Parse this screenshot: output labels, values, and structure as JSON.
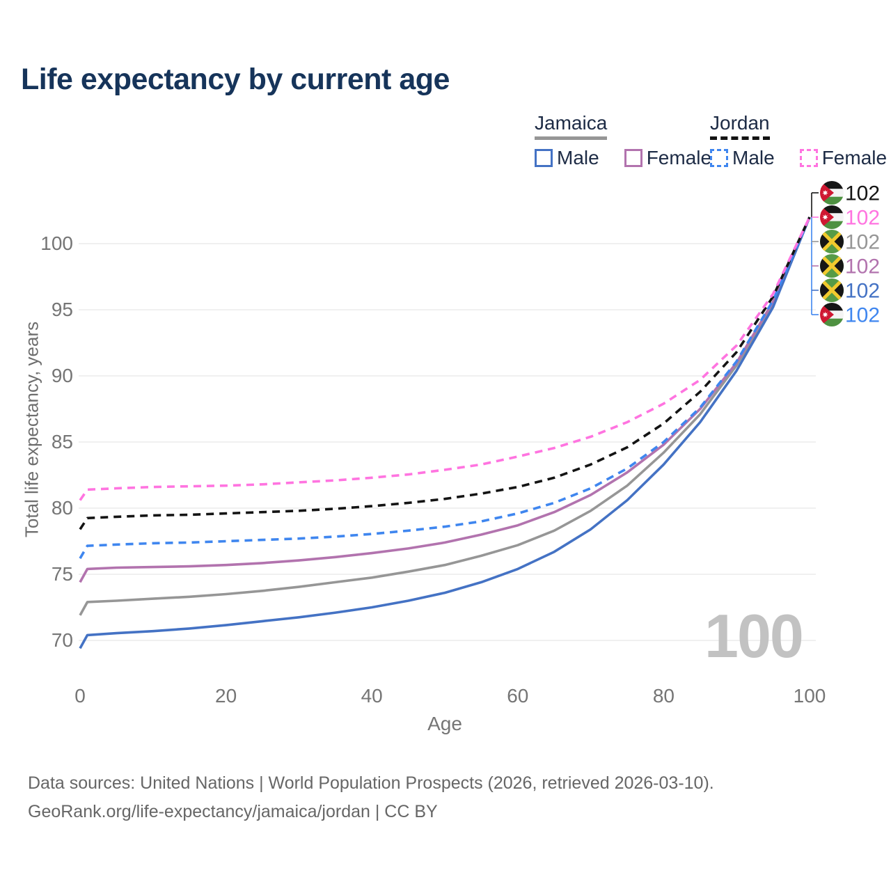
{
  "title": "Life expectancy by current age",
  "watermark": "100",
  "legend": {
    "groups": [
      {
        "country": "Jamaica",
        "line_style": "solid",
        "underline_color": "#969696",
        "items": [
          {
            "label": "Male",
            "color": "#4472c4",
            "dashed": false
          },
          {
            "label": "Female",
            "color": "#b273ae",
            "dashed": false
          }
        ]
      },
      {
        "country": "Jordan",
        "line_style": "dashed",
        "underline_color": "#141414",
        "items": [
          {
            "label": "Male",
            "color": "#3f86ef",
            "dashed": true
          },
          {
            "label": "Female",
            "color": "#ff74e0",
            "dashed": true
          }
        ]
      }
    ]
  },
  "axes": {
    "x_label": "Age",
    "y_label": "Total life expectancy, years",
    "x_ticks": [
      0,
      20,
      40,
      60,
      80,
      100
    ],
    "y_ticks": [
      70,
      75,
      80,
      85,
      90,
      95,
      100
    ]
  },
  "end_labels": [
    {
      "series": "jordan-all",
      "flag": "jordan",
      "value": "102",
      "color": "#141414"
    },
    {
      "series": "jordan-female",
      "flag": "jordan",
      "value": "102",
      "color": "#ff74e0"
    },
    {
      "series": "jamaica-all",
      "flag": "jamaica",
      "value": "102",
      "color": "#969696"
    },
    {
      "series": "jamaica-female",
      "flag": "jamaica",
      "value": "102",
      "color": "#b273ae"
    },
    {
      "series": "jamaica-male",
      "flag": "jamaica",
      "value": "102",
      "color": "#4472c4"
    },
    {
      "series": "jordan-male",
      "flag": "jordan",
      "value": "102",
      "color": "#3f86ef"
    }
  ],
  "footer": {
    "line1": "Data sources: United Nations | World Population Prospects (2026, retrieved 2026-03-10).",
    "line2": "GeoRank.org/life-expectancy/jamaica/jordan | CC BY"
  },
  "chart_data": {
    "type": "line",
    "title": "Life expectancy by current age",
    "xlabel": "Age",
    "ylabel": "Total life expectancy, years",
    "xlim": [
      0,
      100
    ],
    "ylim": [
      68.5,
      103.5
    ],
    "x_ticks": [
      0,
      20,
      40,
      60,
      80,
      100
    ],
    "y_ticks": [
      70,
      75,
      80,
      85,
      90,
      95,
      100
    ],
    "grid": "horizontal",
    "legend_position": "top-right",
    "ages": [
      0,
      1,
      5,
      10,
      15,
      20,
      25,
      30,
      35,
      40,
      45,
      50,
      55,
      60,
      65,
      70,
      75,
      80,
      85,
      90,
      95,
      100
    ],
    "series": [
      {
        "id": "jamaica-all",
        "name": "Jamaica (both sexes)",
        "country": "Jamaica",
        "sex": "All",
        "color": "#969696",
        "dashed": false,
        "end_value": 102,
        "values": [
          71.9,
          72.9,
          73.0,
          73.15,
          73.3,
          73.5,
          73.75,
          74.05,
          74.4,
          74.75,
          75.2,
          75.7,
          76.4,
          77.2,
          78.3,
          79.8,
          81.7,
          84.2,
          87.1,
          90.8,
          95.4,
          102
        ]
      },
      {
        "id": "jamaica-female",
        "name": "Jamaica Female",
        "country": "Jamaica",
        "sex": "Female",
        "color": "#b273ae",
        "dashed": false,
        "end_value": 102,
        "values": [
          74.4,
          75.4,
          75.5,
          75.55,
          75.6,
          75.7,
          75.85,
          76.05,
          76.3,
          76.6,
          76.95,
          77.4,
          78.0,
          78.7,
          79.7,
          81.0,
          82.7,
          84.8,
          87.5,
          91.0,
          95.6,
          102
        ]
      },
      {
        "id": "jamaica-male",
        "name": "Jamaica Male",
        "country": "Jamaica",
        "sex": "Male",
        "color": "#4472c4",
        "dashed": false,
        "end_value": 102,
        "values": [
          69.4,
          70.4,
          70.55,
          70.7,
          70.9,
          71.15,
          71.45,
          71.75,
          72.1,
          72.5,
          73.0,
          73.6,
          74.4,
          75.4,
          76.7,
          78.4,
          80.6,
          83.3,
          86.5,
          90.4,
          95.2,
          102
        ]
      },
      {
        "id": "jordan-male",
        "name": "Jordan Male",
        "country": "Jordan",
        "sex": "Male",
        "color": "#3f86ef",
        "dashed": true,
        "end_value": 102,
        "values": [
          76.2,
          77.15,
          77.25,
          77.35,
          77.4,
          77.5,
          77.6,
          77.7,
          77.85,
          78.05,
          78.3,
          78.6,
          79.0,
          79.6,
          80.4,
          81.5,
          83.0,
          85.0,
          87.6,
          91.1,
          95.7,
          102
        ]
      },
      {
        "id": "jordan-all",
        "name": "Jordan (both sexes)",
        "country": "Jordan",
        "sex": "All",
        "color": "#141414",
        "dashed": true,
        "end_value": 102,
        "values": [
          78.4,
          79.25,
          79.35,
          79.45,
          79.5,
          79.6,
          79.7,
          79.8,
          79.95,
          80.15,
          80.4,
          80.7,
          81.1,
          81.6,
          82.3,
          83.3,
          84.6,
          86.4,
          88.8,
          91.8,
          96.0,
          102
        ]
      },
      {
        "id": "jordan-female",
        "name": "Jordan Female",
        "country": "Jordan",
        "sex": "Female",
        "color": "#ff74e0",
        "dashed": true,
        "end_value": 102,
        "values": [
          80.6,
          81.4,
          81.5,
          81.6,
          81.65,
          81.7,
          81.8,
          81.95,
          82.1,
          82.3,
          82.55,
          82.9,
          83.3,
          83.9,
          84.55,
          85.4,
          86.5,
          87.9,
          89.7,
          92.3,
          96.2,
          102
        ]
      }
    ]
  }
}
